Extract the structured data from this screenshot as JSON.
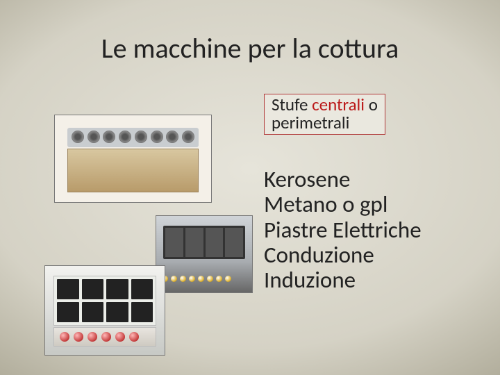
{
  "title": "Le macchine per la cottura",
  "subtitle": {
    "part1": "Stufe ",
    "highlight": "centrali",
    "part2": " o",
    "line2": "perimetrali"
  },
  "body": {
    "l1": "Kerosene",
    "l2": "Metano o gpl",
    "l3": "Piastre Elettriche",
    "l4": "Conduzione",
    "l5": "Induzione"
  },
  "colors": {
    "highlight": "#bb1a1a",
    "box_border": "#b03838",
    "box_bg": "#eae8df",
    "text": "#222222"
  }
}
